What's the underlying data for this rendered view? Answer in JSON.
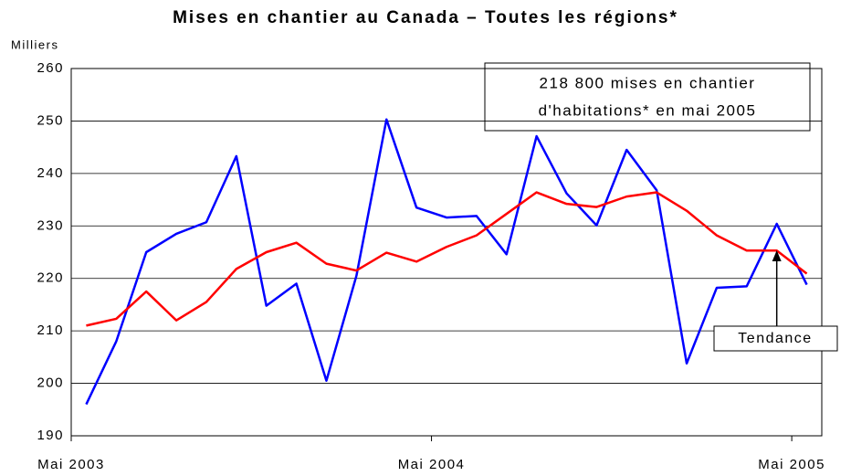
{
  "chart_data": {
    "type": "line",
    "title": "Mises en chantier au Canada – Toutes les régions*",
    "y_axis_label": "Milliers",
    "categories": [
      "Mai 2003",
      null,
      null,
      null,
      null,
      null,
      null,
      null,
      null,
      null,
      null,
      null,
      "Mai 2004",
      null,
      null,
      null,
      null,
      null,
      null,
      null,
      null,
      null,
      null,
      null,
      "Mai 2005"
    ],
    "series": [
      {
        "color": "#0000ff",
        "values": [
          196,
          208,
          225,
          228.5,
          230.7,
          243.3,
          214.8,
          219,
          200.5,
          220.5,
          250.3,
          233.5,
          231.6,
          231.9,
          224.6,
          247.1,
          236.2,
          230.1,
          244.5,
          236.8,
          203.8,
          218.2,
          218.5,
          230.4,
          218.8
        ]
      },
      {
        "color": "#ff0000",
        "values": [
          211,
          212.3,
          217.5,
          212,
          215.5,
          221.8,
          225,
          226.8,
          222.8,
          221.5,
          224.9,
          223.2,
          226,
          228.2,
          232.3,
          236.4,
          234.2,
          233.6,
          235.6,
          236.4,
          232.9,
          228.2,
          225.3,
          225.3,
          220.9
        ]
      }
    ],
    "ylim": [
      190,
      260
    ],
    "yticks": [
      190,
      200,
      210,
      220,
      230,
      240,
      250,
      260
    ],
    "grid": true,
    "annotations": [
      "218 800 mises en chantier",
      "d'habitations* en mai 2005",
      "Tendance"
    ]
  }
}
